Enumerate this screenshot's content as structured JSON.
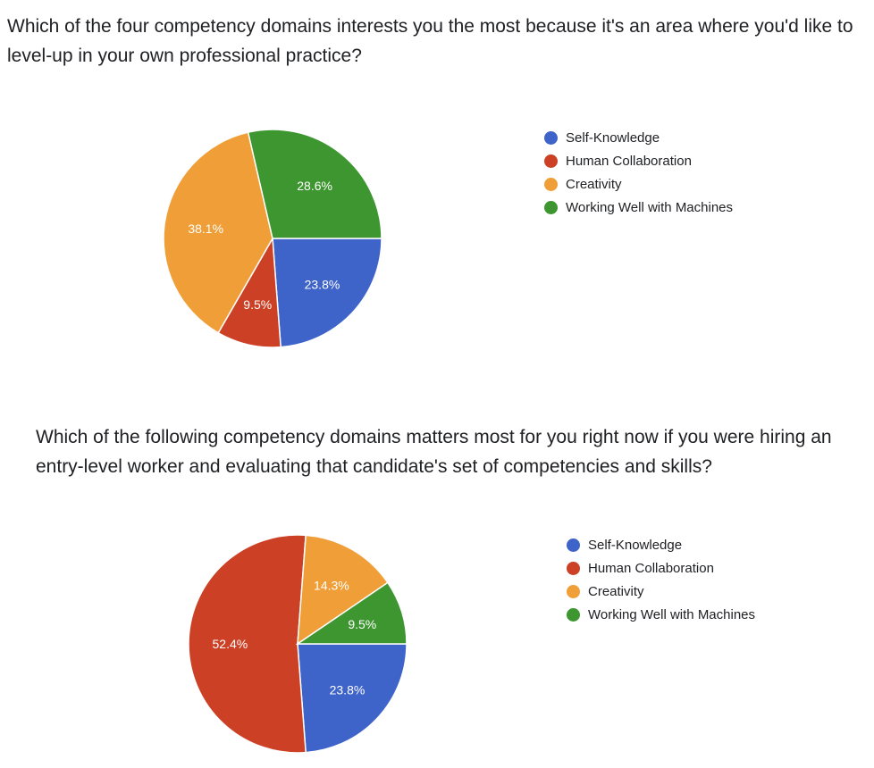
{
  "colors": {
    "Self-Knowledge": "#3e63c9",
    "Human Collaboration": "#cc4125",
    "Creativity": "#f09f38",
    "Working Well with Machines": "#3d9630"
  },
  "chart_data": [
    {
      "type": "pie",
      "title": "Which of the four competency domains interests you the most because it's an area where you'd like to level-up in your own professional practice?",
      "legend_position": "right",
      "legend": [
        "Self-Knowledge",
        "Human Collaboration",
        "Creativity",
        "Working Well with Machines"
      ],
      "slices": [
        {
          "category": "Self-Knowledge",
          "value": 23.8,
          "label": "23.8%"
        },
        {
          "category": "Human Collaboration",
          "value": 9.5,
          "label": "9.5%"
        },
        {
          "category": "Creativity",
          "value": 38.1,
          "label": "38.1%"
        },
        {
          "category": "Working Well with Machines",
          "value": 28.6,
          "label": "28.6%"
        }
      ]
    },
    {
      "type": "pie",
      "title": "Which of the following competency domains matters most for you right now if you were hiring an entry-level worker and evaluating that candidate's set of competencies and skills?",
      "legend_position": "right",
      "legend": [
        "Self-Knowledge",
        "Human Collaboration",
        "Creativity",
        "Working Well with Machines"
      ],
      "slices": [
        {
          "category": "Self-Knowledge",
          "value": 23.8,
          "label": "23.8%"
        },
        {
          "category": "Human Collaboration",
          "value": 52.4,
          "label": "52.4%"
        },
        {
          "category": "Creativity",
          "value": 14.3,
          "label": "14.3%"
        },
        {
          "category": "Working Well with Machines",
          "value": 9.5,
          "label": "9.5%"
        }
      ]
    }
  ]
}
